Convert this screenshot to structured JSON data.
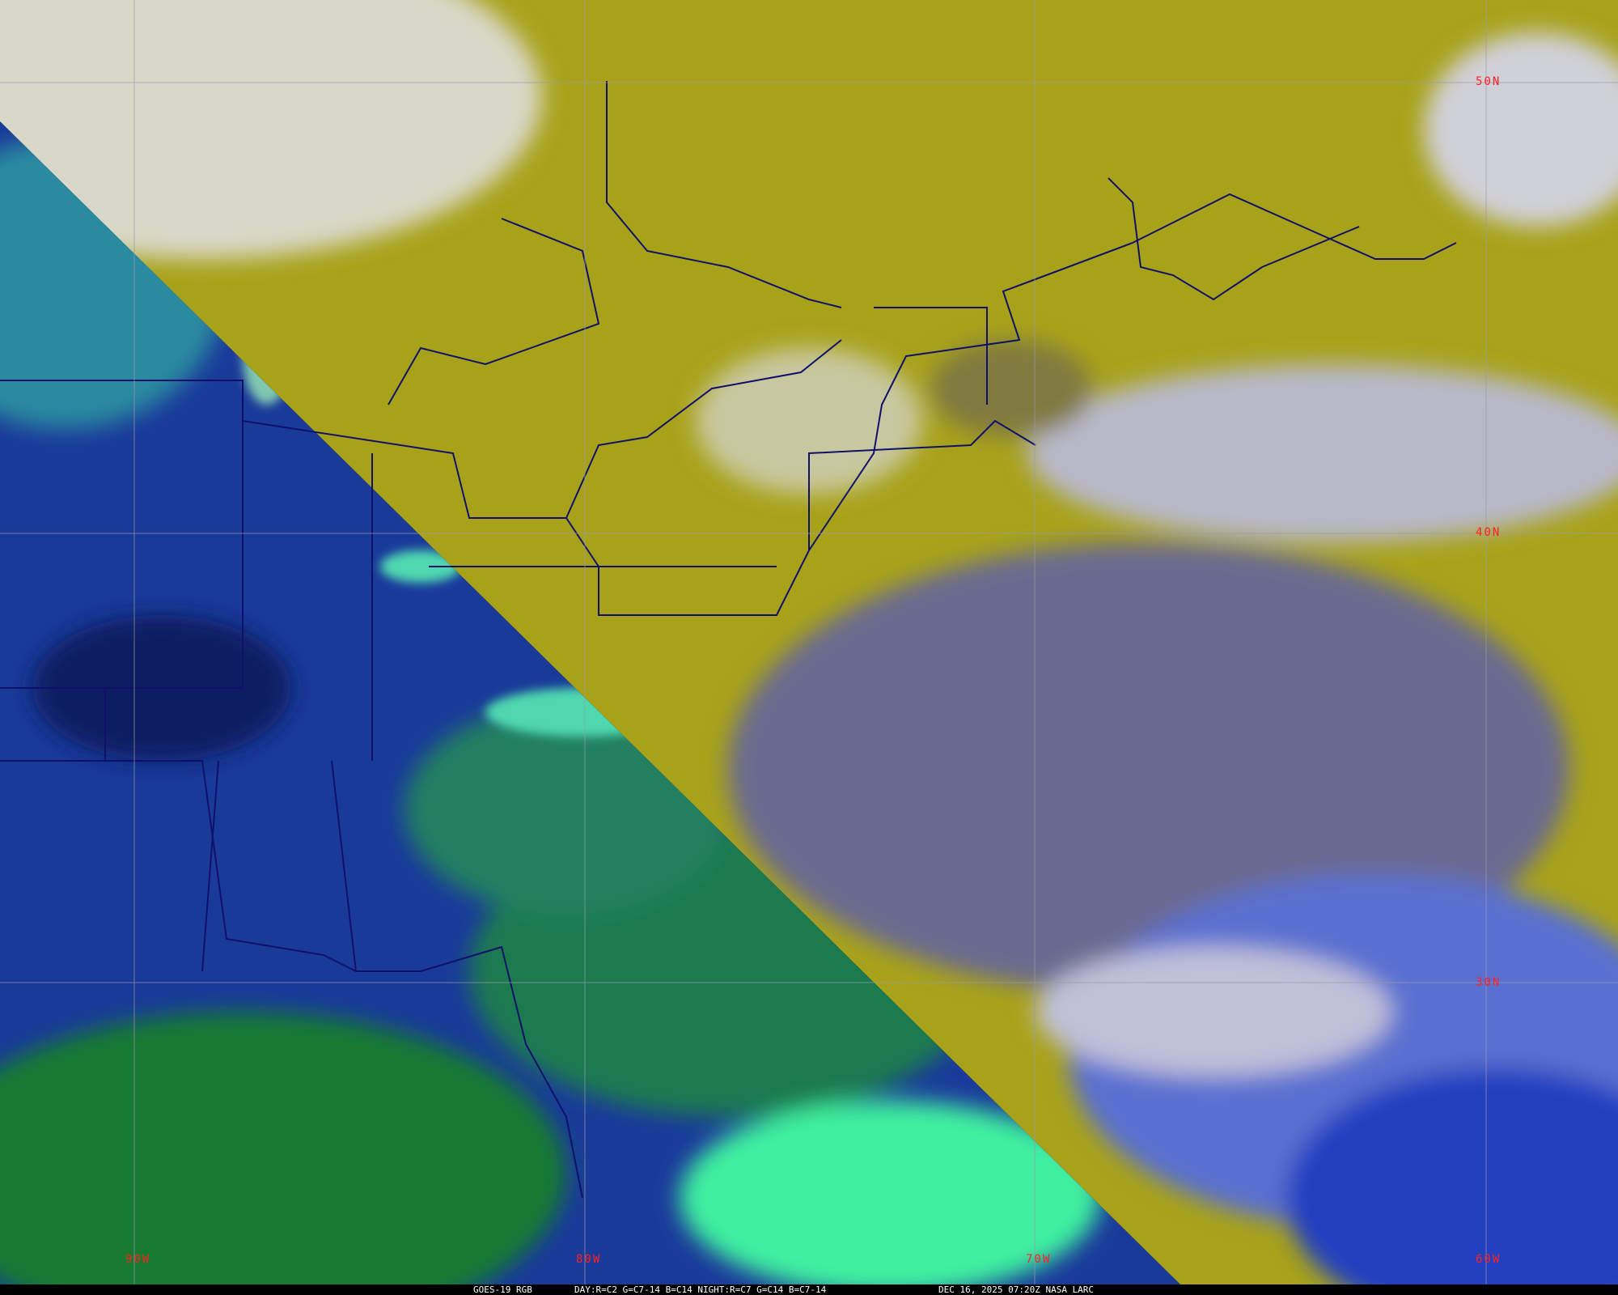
{
  "caption": {
    "product": "GOES-19 RGB",
    "recipe": "DAY:R=C2 G=C7-14 B=C14 NIGHT:R=C7 G=C14 B=C7-14",
    "timestamp": "DEC 16, 2025 07:20Z NASA LARC"
  },
  "grid": {
    "lat_labels": [
      "50N",
      "40N",
      "30N"
    ],
    "lon_labels": [
      "90W",
      "80W",
      "70W",
      "60W"
    ],
    "label_color": "#ff2020",
    "grid_color": "#9a9aa8"
  },
  "colors": {
    "day_region": "#a8a21a",
    "night_region": "#1a3a9a",
    "night_clouds": "#30e0a0",
    "borders": "#10106a"
  }
}
